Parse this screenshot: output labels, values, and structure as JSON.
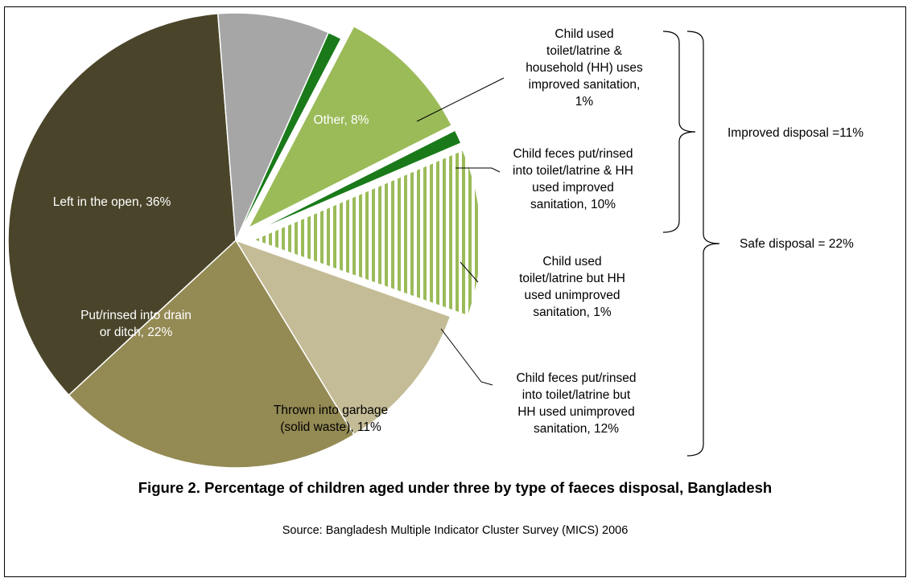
{
  "chart_data": {
    "type": "pie",
    "title": "",
    "slices": [
      {
        "label": "Child used toilet/latrine & household (HH) uses improved sanitation, 1%",
        "value": 1,
        "color": "#1a7a1a",
        "pattern": "solid"
      },
      {
        "label": "Child feces put/rinsed into toilet/latrine & HH used improved sanitation, 10%",
        "value": 10,
        "color": "#9bbb59",
        "pattern": "solid"
      },
      {
        "label": "Child used toilet/latrine but HH used unimproved sanitation, 1%",
        "value": 1,
        "color": "#1a7a1a",
        "pattern": "solid"
      },
      {
        "label": "Child feces put/rinsed into toilet/latrine but HH used unimproved sanitation, 12%",
        "value": 12,
        "color": "#9bbb59",
        "pattern": "stripes"
      },
      {
        "label": "Thrown into garbage (solid waste), 11%",
        "value": 11,
        "color": "#c4bc96",
        "pattern": "solid"
      },
      {
        "label": "Put/rinsed into drain or ditch, 22%",
        "value": 22,
        "color": "#948a54",
        "pattern": "solid"
      },
      {
        "label": "Left in the open, 36%",
        "value": 36,
        "color": "#4a452a",
        "pattern": "solid"
      },
      {
        "label": "Other, 8%",
        "value": 8,
        "color": "#a6a6a6",
        "pattern": "solid"
      }
    ],
    "label_lines": [
      [
        "Child used",
        "toilet/latrine &",
        "household (HH) uses",
        "improved sanitation,",
        "1%"
      ],
      [
        "Child feces put/rinsed",
        "into toilet/latrine & HH",
        "used improved",
        "sanitation, 10%"
      ],
      [
        "Child used",
        "toilet/latrine but HH",
        "used unimproved",
        "sanitation, 1%"
      ],
      [
        "Child feces put/rinsed",
        "into toilet/latrine but",
        "HH used unimproved",
        "sanitation, 12%"
      ],
      [
        "Thrown into garbage",
        "(solid waste), 11%"
      ],
      [
        "Put/rinsed into drain",
        "or ditch, 22%"
      ],
      [
        "Left in the open, 36%"
      ],
      [
        "Other, 8%"
      ]
    ],
    "brackets": [
      {
        "label": "Improved disposal =11%"
      },
      {
        "label": "Safe disposal = 22%"
      }
    ]
  },
  "caption": "Figure 2. Percentage of children aged under three by type of faeces disposal, Bangladesh",
  "source": "Source: Bangladesh Multiple Indicator Cluster Survey (MICS) 2006"
}
